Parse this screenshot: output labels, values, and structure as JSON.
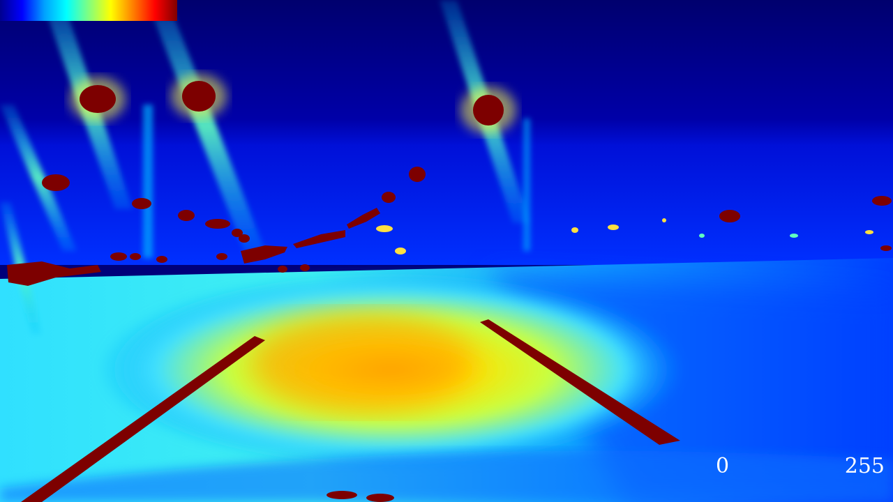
{
  "colorbar": {
    "min_label": "0",
    "max_label": "255",
    "colormap": "jet",
    "stops": [
      "#00008f",
      "#0000ff",
      "#00a0ff",
      "#00ffff",
      "#80ff80",
      "#ffff00",
      "#ff8000",
      "#ff0000",
      "#800000"
    ]
  }
}
